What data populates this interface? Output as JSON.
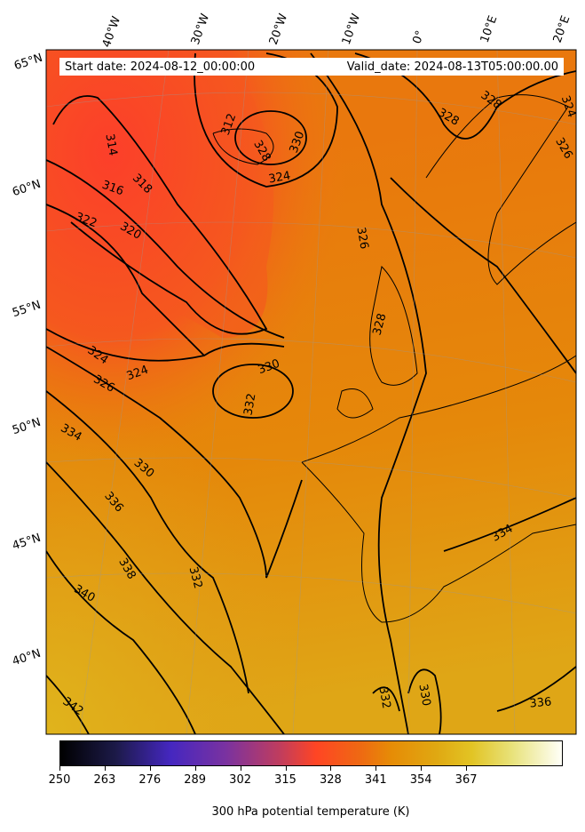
{
  "header": {
    "start_date": "Start date: 2024-08-12_00:00:00",
    "valid_date": "Valid_date: 2024-08-13T05:00:00.00"
  },
  "map": {
    "lat_labels": [
      "65°N",
      "60°N",
      "55°N",
      "50°N",
      "45°N",
      "40°N"
    ],
    "lon_labels": [
      "40°W",
      "30°W",
      "20°W",
      "10°W",
      "0°",
      "10°E",
      "20°E"
    ],
    "contour_labels": [
      "314",
      "316",
      "318",
      "320",
      "322",
      "324",
      "324",
      "324",
      "326",
      "328",
      "328",
      "328",
      "328",
      "330",
      "330",
      "330",
      "332",
      "332",
      "332",
      "334",
      "334",
      "336",
      "336",
      "338",
      "340",
      "342",
      "312",
      "326",
      "324",
      "326",
      "330"
    ]
  },
  "colorbar": {
    "title": "300 hPa potential temperature (K)",
    "ticks": [
      "250",
      "263",
      "276",
      "289",
      "302",
      "315",
      "328",
      "341",
      "354",
      "367"
    ],
    "colors": [
      "#000000",
      "#4527c0",
      "#ff4524",
      "#e68c06",
      "#e2c424",
      "#fffff8"
    ]
  }
}
